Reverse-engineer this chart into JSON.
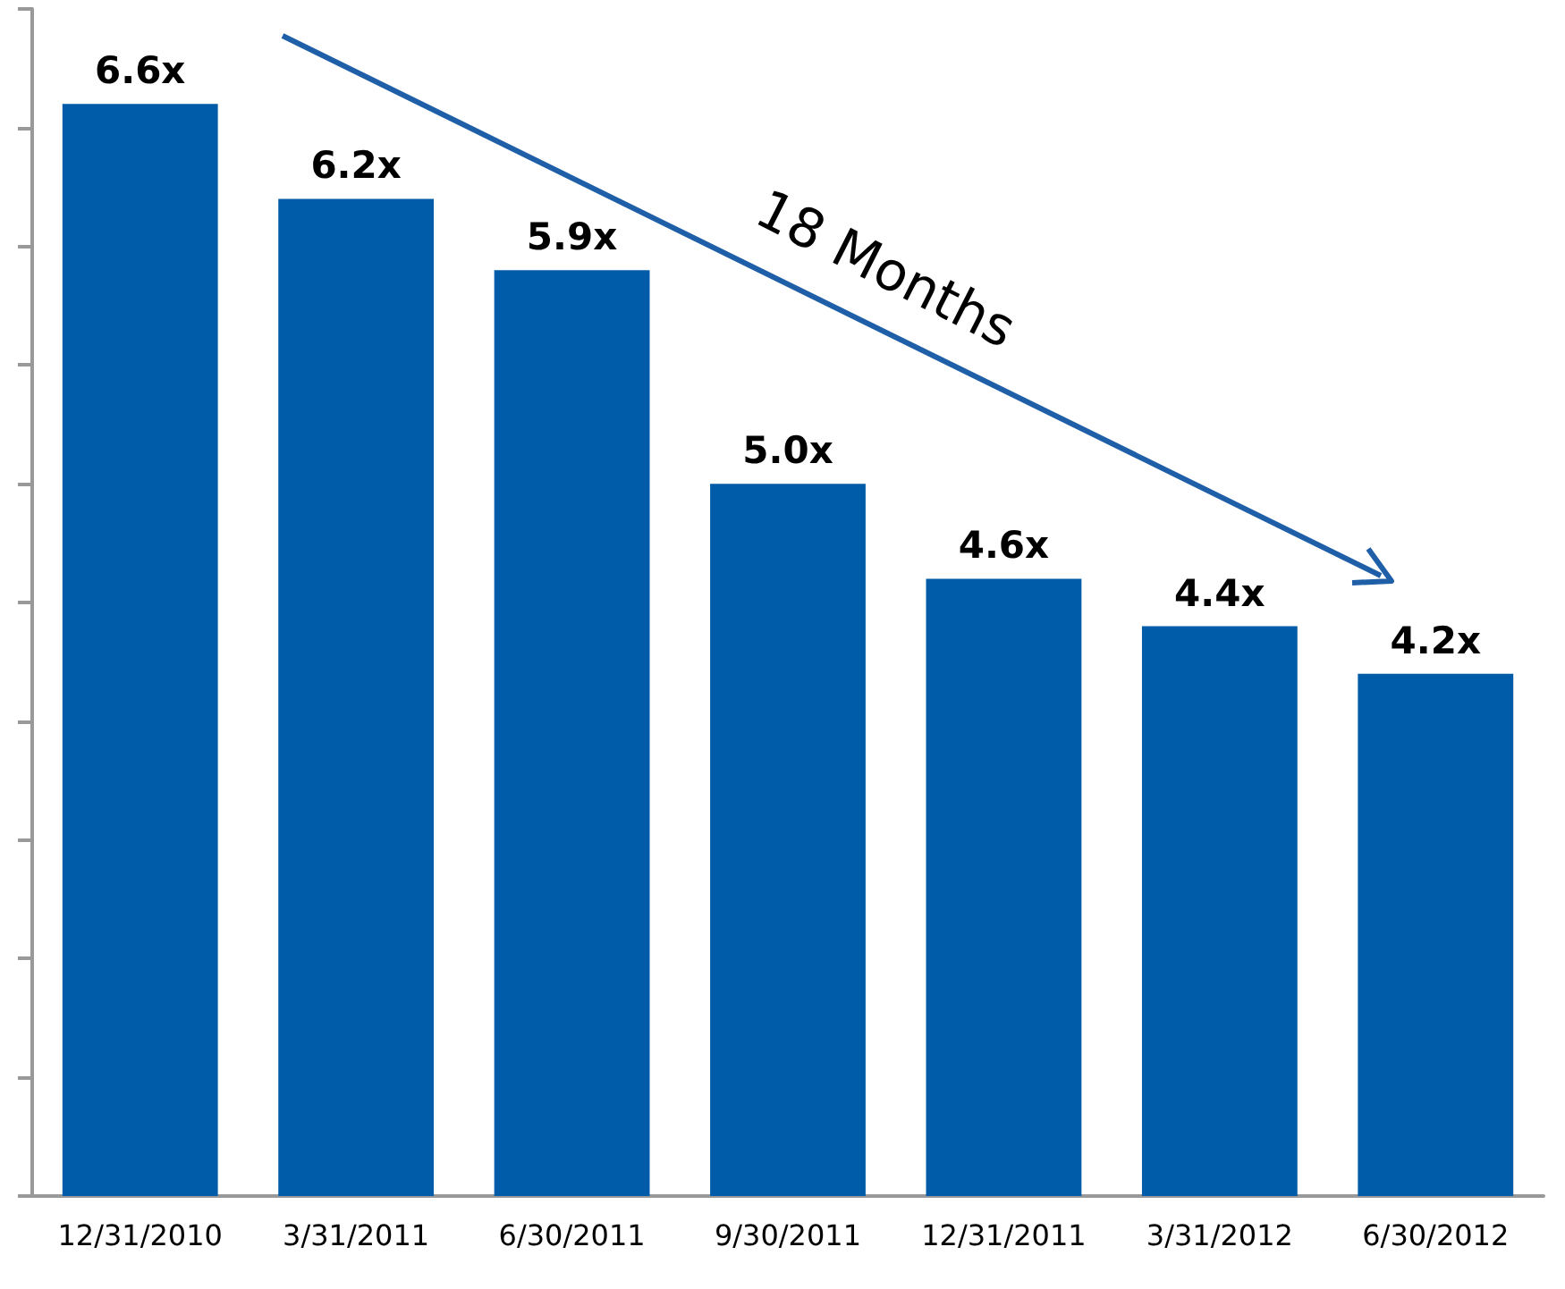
{
  "chart_data": {
    "type": "bar",
    "categories": [
      "12/31/2010",
      "3/31/2011",
      "6/30/2011",
      "9/30/2011",
      "12/31/2011",
      "3/31/2012",
      "6/30/2012"
    ],
    "values": [
      6.6,
      6.2,
      5.9,
      5.0,
      4.6,
      4.4,
      4.2
    ],
    "value_labels": [
      "6.6x",
      "6.2x",
      "5.9x",
      "5.0x",
      "4.6x",
      "4.4x",
      "4.2x"
    ],
    "color": "#005ca8",
    "ylim": [
      2,
      7
    ],
    "yticks": [
      {
        "value": 2,
        "label": null
      },
      {
        "value": 2.5,
        "label": null
      },
      {
        "value": 3,
        "label": null
      },
      {
        "value": 3.5,
        "label": null
      },
      {
        "value": 4,
        "label": null
      },
      {
        "value": 4.5,
        "label": null
      },
      {
        "value": 5,
        "label": null
      },
      {
        "value": 5.5,
        "label": null
      },
      {
        "value": 6,
        "label": null
      },
      {
        "value": 6.5,
        "label": null
      },
      {
        "value": 7,
        "label": null
      }
    ],
    "tick_labels": "x",
    "grid": false,
    "annotations": [
      "18 Months"
    ]
  }
}
